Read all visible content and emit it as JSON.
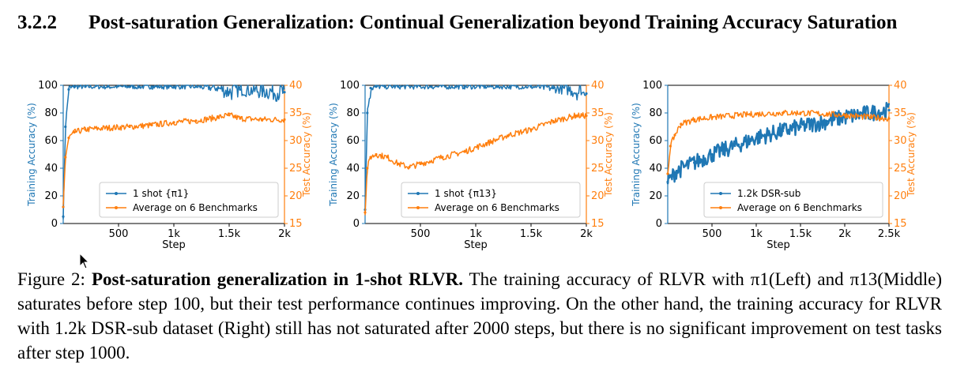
{
  "section": {
    "number": "3.2.2",
    "title": "Post-saturation Generalization: Continual Generalization beyond Training Accuracy Saturation"
  },
  "caption": {
    "figure_label": "Figure 2:",
    "bold_text": "Post-saturation generalization in 1-shot RLVR.",
    "body": " The training accuracy of RLVR with π1(Left) and π13(Middle) saturates before step 100, but their test performance continues improving. On the other hand, the training accuracy for RLVR with 1.2k DSR-sub dataset (Right) still has not saturated after 2000 steps, but there is no significant improvement on test tasks after step 1000."
  },
  "colors": {
    "train": "#1f77b4",
    "test": "#ff7f0e",
    "left_axis": "#1f77b4",
    "right_axis": "#ff7f0e"
  },
  "chart_data": [
    {
      "type": "line",
      "xlabel": "Step",
      "ylabel": "Training Accuracy (%)",
      "y2label": "Test Accuracy (%)",
      "xlim": [
        0,
        2000
      ],
      "ylim": [
        0,
        100
      ],
      "y2lim": [
        15,
        40
      ],
      "xticks": [
        500,
        1000,
        1500,
        2000
      ],
      "xticklabels": [
        "500",
        "1k",
        "1.5k",
        "2k"
      ],
      "yticks": [
        0,
        20,
        40,
        60,
        80,
        100
      ],
      "y2ticks": [
        15,
        20,
        25,
        30,
        35,
        40
      ],
      "legend_position": "lower-right",
      "series": [
        {
          "name": "1 shot {π1}",
          "axis": "left",
          "color": "#1f77b4",
          "x": [
            0,
            20,
            50,
            100,
            200,
            400,
            600,
            800,
            1000,
            1200,
            1400,
            1500,
            1600,
            1800,
            2000
          ],
          "y": [
            5,
            70,
            97,
            99,
            99,
            99,
            99,
            99,
            99,
            99,
            98,
            95,
            97,
            96,
            95
          ]
        },
        {
          "name": "Average on 6 Benchmarks",
          "axis": "right",
          "color": "#ff7f0e",
          "x": [
            0,
            20,
            50,
            100,
            200,
            400,
            600,
            800,
            1000,
            1200,
            1400,
            1500,
            1600,
            1800,
            2000
          ],
          "y": [
            18,
            27,
            30.5,
            31.5,
            32,
            32.3,
            32.5,
            32.8,
            33.3,
            33.6,
            34.2,
            34.6,
            34,
            33.8,
            33.8
          ]
        }
      ]
    },
    {
      "type": "line",
      "xlabel": "Step",
      "ylabel": "Training Accuracy (%)",
      "y2label": "Test Accuracy (%)",
      "xlim": [
        0,
        2000
      ],
      "ylim": [
        0,
        100
      ],
      "y2lim": [
        15,
        40
      ],
      "xticks": [
        500,
        1000,
        1500,
        2000
      ],
      "xticklabels": [
        "500",
        "1k",
        "1.5k",
        "2k"
      ],
      "yticks": [
        0,
        20,
        40,
        60,
        80,
        100
      ],
      "y2ticks": [
        15,
        20,
        25,
        30,
        35,
        40
      ],
      "legend_position": "lower-right",
      "series": [
        {
          "name": "1 shot {π13}",
          "axis": "left",
          "color": "#1f77b4",
          "x": [
            0,
            20,
            50,
            100,
            300,
            600,
            900,
            1200,
            1500,
            1700,
            1850,
            2000
          ],
          "y": [
            10,
            80,
            98,
            99,
            99,
            99,
            99,
            99,
            99,
            98,
            97,
            94
          ]
        },
        {
          "name": "Average on 6 Benchmarks",
          "axis": "right",
          "color": "#ff7f0e",
          "x": [
            0,
            20,
            50,
            100,
            200,
            300,
            400,
            500,
            700,
            900,
            1100,
            1300,
            1500,
            1700,
            1900,
            2000
          ],
          "y": [
            17,
            25,
            27,
            27.5,
            27,
            25.8,
            25.2,
            25.8,
            27,
            28,
            29.5,
            31,
            32,
            33.5,
            34.5,
            34.5
          ]
        }
      ]
    },
    {
      "type": "line",
      "xlabel": "Step",
      "ylabel": "Training Accuracy (%)",
      "y2label": "Test Accuracy (%)",
      "xlim": [
        0,
        2500
      ],
      "ylim": [
        0,
        100
      ],
      "y2lim": [
        15,
        40
      ],
      "xticks": [
        500,
        1000,
        1500,
        2000,
        2500
      ],
      "xticklabels": [
        "500",
        "1k",
        "1.5k",
        "2k",
        "2.5k"
      ],
      "yticks": [
        0,
        20,
        40,
        60,
        80,
        100
      ],
      "y2ticks": [
        15,
        20,
        25,
        30,
        35,
        40
      ],
      "legend_position": "lower-right",
      "series": [
        {
          "name": "1.2k DSR-sub",
          "axis": "left",
          "color": "#1f77b4",
          "x": [
            0,
            100,
            300,
            500,
            800,
            1000,
            1300,
            1500,
            1800,
            2000,
            2300,
            2500
          ],
          "y": [
            30,
            38,
            44,
            50,
            57,
            62,
            67,
            70,
            74,
            77,
            80,
            82
          ]
        },
        {
          "name": "Average on 6 Benchmarks",
          "axis": "right",
          "color": "#ff7f0e",
          "x": [
            0,
            30,
            80,
            150,
            300,
            500,
            800,
            1000,
            1300,
            1500,
            1800,
            2000,
            2300,
            2500
          ],
          "y": [
            24,
            29,
            31,
            33,
            33.8,
            34.2,
            34.6,
            34.8,
            35,
            35,
            34.8,
            34.6,
            34.2,
            34
          ]
        }
      ]
    }
  ]
}
